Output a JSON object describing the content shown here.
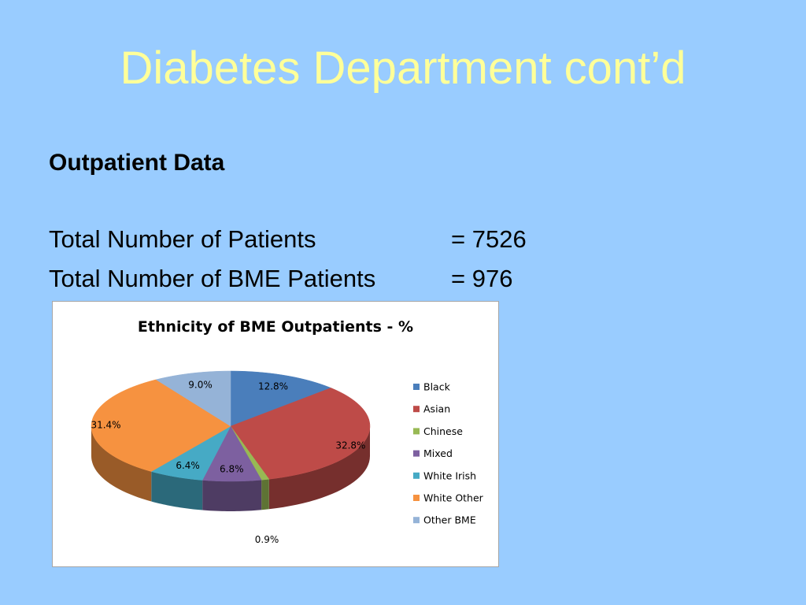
{
  "slide": {
    "title": "Diabetes Department cont’d",
    "section_heading": "Outpatient Data",
    "stats": [
      {
        "label": "Total Number of Patients",
        "value": "= 7526"
      },
      {
        "label": "Total Number of BME Patients",
        "value": "= 976"
      }
    ]
  },
  "chart_data": {
    "type": "pie",
    "title": "Ethnicity of BME Outpatients - %",
    "legend_position": "right",
    "categories": [
      "Black",
      "Asian",
      "Chinese",
      "Mixed",
      "White Irish",
      "White Other",
      "Other BME"
    ],
    "values": [
      12.8,
      32.8,
      0.9,
      6.8,
      6.4,
      31.4,
      9.0
    ],
    "labels": [
      "12.8%",
      "32.8%",
      "0.9%",
      "6.8%",
      "6.4%",
      "31.4%",
      "9.0%"
    ],
    "colors": [
      "#4a7ebb",
      "#be4b48",
      "#98b954",
      "#7d60a0",
      "#46aac5",
      "#f69240",
      "#95b3d7"
    ]
  }
}
